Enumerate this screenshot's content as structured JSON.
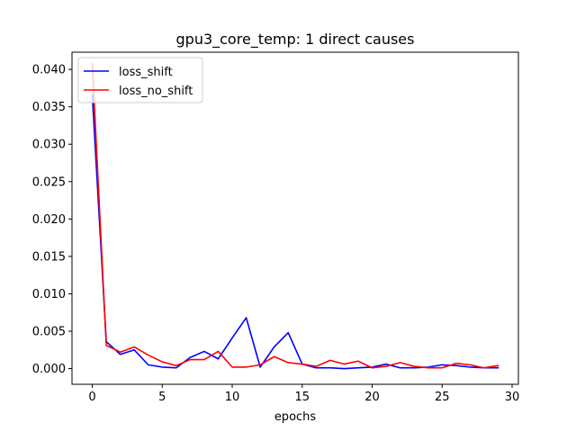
{
  "chart_data": {
    "type": "line",
    "title": "gpu3_core_temp: 1 direct causes",
    "xlabel": "epochs",
    "ylabel": "",
    "xlim": [
      -1.45,
      30.45
    ],
    "ylim": [
      -0.0021,
      0.0423
    ],
    "xticks": [
      0,
      5,
      10,
      15,
      20,
      25,
      30
    ],
    "xtick_labels": [
      "0",
      "5",
      "10",
      "15",
      "20",
      "25",
      "30"
    ],
    "yticks": [
      0.0,
      0.005,
      0.01,
      0.015,
      0.02,
      0.025,
      0.03,
      0.035,
      0.04
    ],
    "ytick_labels": [
      "0.000",
      "0.005",
      "0.010",
      "0.015",
      "0.020",
      "0.025",
      "0.030",
      "0.035",
      "0.040"
    ],
    "grid": false,
    "legend_position": "upper left",
    "x": [
      0,
      1,
      2,
      3,
      4,
      5,
      6,
      7,
      8,
      9,
      10,
      11,
      12,
      13,
      14,
      15,
      16,
      17,
      18,
      19,
      20,
      21,
      22,
      23,
      24,
      25,
      26,
      27,
      28,
      29
    ],
    "series": [
      {
        "name": "loss_shift",
        "color": "#0000ff",
        "values": [
          0.0366,
          0.0036,
          0.0019,
          0.0025,
          0.0005,
          0.0002,
          0.0001,
          0.0015,
          0.0023,
          0.0013,
          0.0041,
          0.0068,
          0.0002,
          0.0029,
          0.0048,
          0.0006,
          0.0001,
          0.0001,
          0.0,
          0.0001,
          0.0002,
          0.0006,
          0.0001,
          0.0001,
          0.0002,
          0.0005,
          0.0004,
          0.0002,
          0.0001,
          0.0001
        ]
      },
      {
        "name": "loss_no_shift",
        "color": "#ff0000",
        "values": [
          0.0408,
          0.0031,
          0.0022,
          0.0029,
          0.0018,
          0.0009,
          0.0004,
          0.0012,
          0.0012,
          0.0023,
          0.0002,
          0.0002,
          0.0005,
          0.0016,
          0.0008,
          0.0006,
          0.0003,
          0.0011,
          0.0006,
          0.001,
          0.0001,
          0.0003,
          0.0008,
          0.0003,
          0.0001,
          0.0001,
          0.0007,
          0.0005,
          0.0001,
          0.0004
        ]
      }
    ]
  }
}
